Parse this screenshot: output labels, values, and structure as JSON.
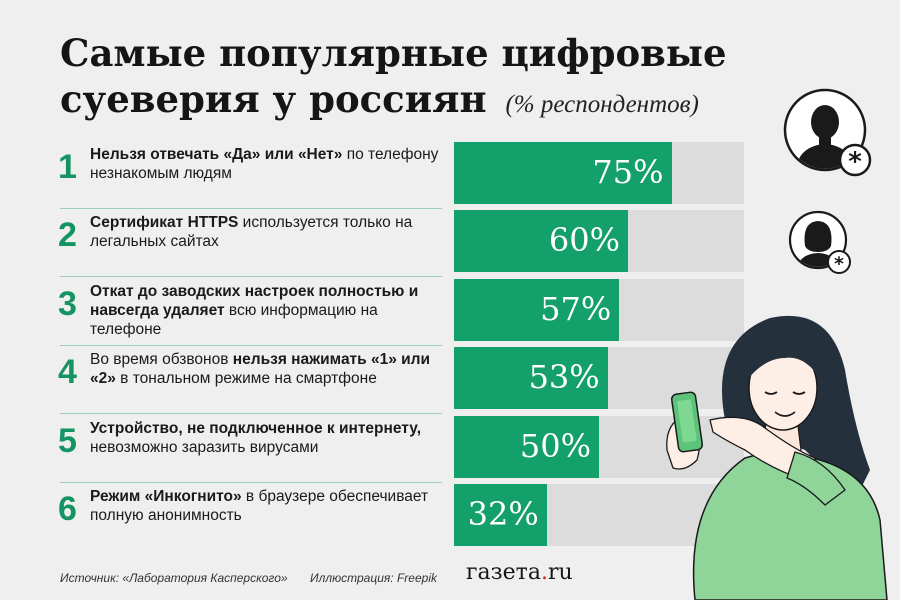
{
  "title": {
    "line1": "Самые популярные цифровые",
    "line2": "суеверия у россиян",
    "subtitle": "(% респондентов)"
  },
  "chart_data": {
    "type": "bar",
    "title": "Самые популярные цифровые суеверия у россиян",
    "subtitle": "(% респондентов)",
    "categories": [
      "1",
      "2",
      "3",
      "4",
      "5",
      "6"
    ],
    "values": [
      75,
      60,
      57,
      53,
      50,
      32
    ],
    "value_labels": [
      "75%",
      "60%",
      "57%",
      "53%",
      "50%",
      "32%"
    ],
    "ylim": [
      0,
      100
    ],
    "orientation": "horizontal",
    "bar_color": "#13a06b",
    "track_color": "#dcdcdc"
  },
  "rows": [
    {
      "rank": "1",
      "parts": [
        {
          "t": "Нельзя отвечать «Да» или «Нет»",
          "b": true
        },
        {
          "t": " по телефону незнакомым людям",
          "b": false
        }
      ],
      "pct": "75%"
    },
    {
      "rank": "2",
      "parts": [
        {
          "t": "Сертификат HTTPS",
          "b": true
        },
        {
          "t": " используется только на легальных сайтах",
          "b": false
        }
      ],
      "pct": "60%"
    },
    {
      "rank": "3",
      "parts": [
        {
          "t": "Откат до заводских настроек полностью и навсегда удаляет",
          "b": true
        },
        {
          "t": " всю информацию на телефоне",
          "b": false
        }
      ],
      "pct": "57%"
    },
    {
      "rank": "4",
      "parts": [
        {
          "t": "Во время обзвонов ",
          "b": false
        },
        {
          "t": "нельзя нажимать «1» или «2»",
          "b": true
        },
        {
          "t": " в тональном режиме на смартфоне",
          "b": false
        }
      ],
      "pct": "53%"
    },
    {
      "rank": "5",
      "parts": [
        {
          "t": "Устройство, не подключенное к интернету,",
          "b": true
        },
        {
          "t": " невозможно заразить вирусами",
          "b": false
        }
      ],
      "pct": "50%"
    },
    {
      "rank": "6",
      "parts": [
        {
          "t": "Режим «Инкогнито»",
          "b": true
        },
        {
          "t": " в браузере обеспечивает полную анонимность",
          "b": false
        }
      ],
      "pct": "32%"
    }
  ],
  "footer": {
    "source": "Источник: «Лаборатория Касперского»",
    "illustration": "Иллюстрация: Freepik",
    "brand_a": "газета",
    "brand_dot": ".",
    "brand_b": "ru"
  },
  "colors": {
    "accent": "#159463",
    "bar": "#13a06b",
    "track": "#dcdcdc",
    "background": "#efefef",
    "brand_dot": "#d8232a"
  },
  "icons": [
    "male-anonymous-avatar-icon",
    "female-anonymous-avatar-icon",
    "woman-with-phone-illustration"
  ]
}
